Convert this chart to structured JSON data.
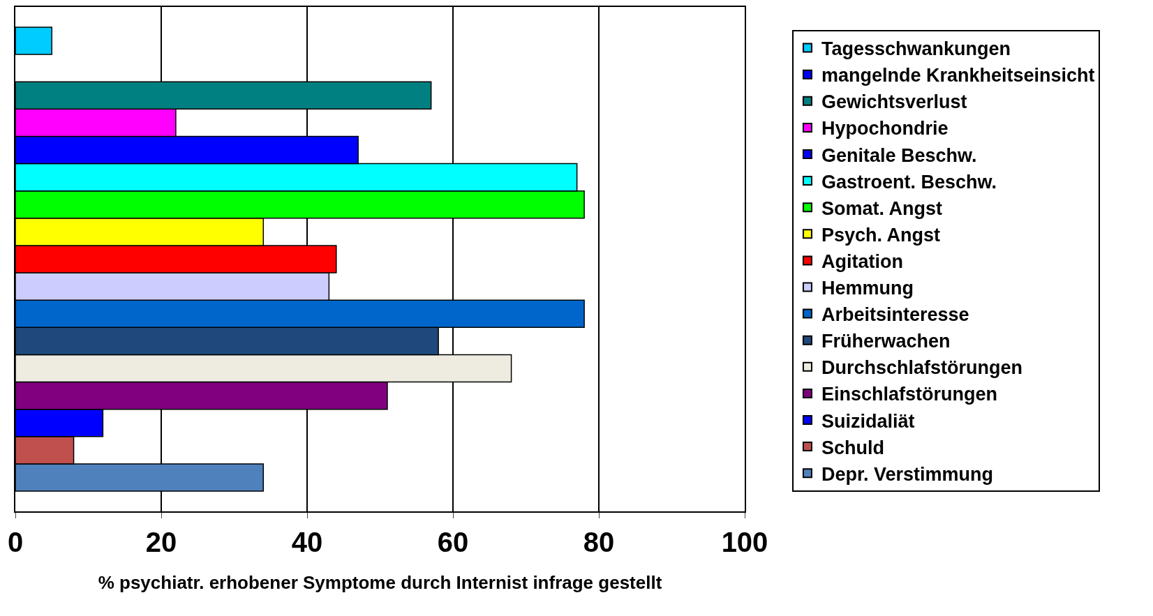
{
  "chart_data": {
    "type": "bar",
    "orientation": "horizontal",
    "xlabel": "% psychiatr. erhobener Symptome durch Internist infrage gestellt",
    "categories": [
      null
    ],
    "series": [
      {
        "name": "Tagesschwankungen",
        "color": "#00ccff",
        "values": [
          5
        ]
      },
      {
        "name": "mangelnde Krankheitseinsicht",
        "color": "#0000ff",
        "values": [
          null
        ]
      },
      {
        "name": "Gewichtsverlust",
        "color": "#008080",
        "values": [
          57
        ]
      },
      {
        "name": "Hypochondrie",
        "color": "#ff00ff",
        "values": [
          22
        ]
      },
      {
        "name": "Genitale Beschw.",
        "color": "#0000ff",
        "values": [
          47
        ]
      },
      {
        "name": "Gastroent. Beschw.",
        "color": "#00ffff",
        "values": [
          77
        ]
      },
      {
        "name": "Somat. Angst",
        "color": "#00ff00",
        "values": [
          78
        ]
      },
      {
        "name": "Psych. Angst",
        "color": "#ffff00",
        "values": [
          34
        ]
      },
      {
        "name": "Agitation",
        "color": "#ff0000",
        "values": [
          44
        ]
      },
      {
        "name": "Hemmung",
        "color": "#ccccff",
        "values": [
          43
        ]
      },
      {
        "name": "Arbeitsinteresse",
        "color": "#0066cc",
        "values": [
          78
        ]
      },
      {
        "name": "Früherwachen",
        "color": "#1f497d",
        "values": [
          58
        ]
      },
      {
        "name": "Durchschlafstörungen",
        "color": "#eeece1",
        "values": [
          68
        ]
      },
      {
        "name": "Einschlafstörungen",
        "color": "#800080",
        "values": [
          51
        ]
      },
      {
        "name": "Suizidaliät",
        "color": "#0000ff",
        "values": [
          12
        ]
      },
      {
        "name": "Schuld",
        "color": "#c0504d",
        "values": [
          8
        ]
      },
      {
        "name": "Depr. Verstimmung",
        "color": "#4f81bd",
        "values": [
          34
        ]
      }
    ],
    "xlim": [
      0,
      100
    ],
    "xticks": [
      0,
      20,
      40,
      60,
      80,
      100
    ],
    "grid": "x",
    "legend": "right",
    "tick_labels": "x"
  }
}
